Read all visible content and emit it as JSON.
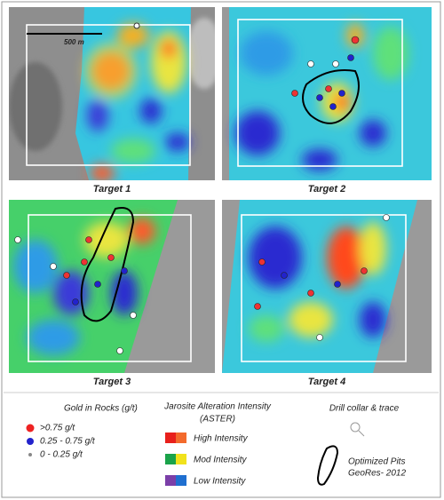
{
  "panels": [
    {
      "caption": "Target 1",
      "scale_label": "500 m"
    },
    {
      "caption": "Target 2"
    },
    {
      "caption": "Target 3"
    },
    {
      "caption": "Target 4"
    }
  ],
  "legend": {
    "gold": {
      "title": "Gold in Rocks (g/t)",
      "items": [
        ">0.75 g/t",
        "0.25 - 0.75 g/t",
        "0 - 0.25 g/t"
      ]
    },
    "jarosite": {
      "title_lines": [
        "Jarosite Alteration Intensity",
        "(ASTER)"
      ],
      "items": [
        "High Intensity",
        "Mod Intensity",
        "Low Intensity"
      ]
    },
    "drill": {
      "title": "Drill collar & trace"
    },
    "pits": {
      "lines": [
        "Optimized Pits",
        "GeoRes- 2012"
      ]
    }
  }
}
